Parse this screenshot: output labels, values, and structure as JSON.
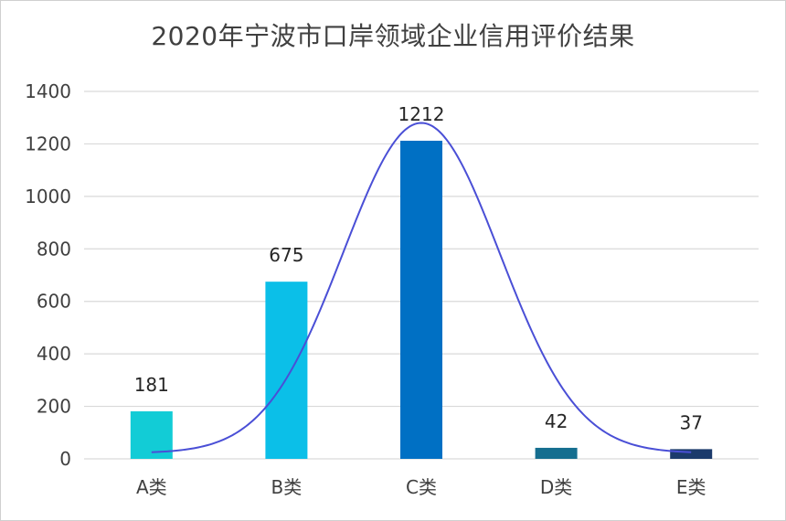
{
  "chart_data": {
    "type": "bar",
    "title": "2020年宁波市口岸领域企业信用评价结果",
    "categories": [
      "A类",
      "B类",
      "C类",
      "D类",
      "E类"
    ],
    "values": [
      181,
      675,
      1212,
      42,
      37
    ],
    "data_labels": [
      "181",
      "675",
      "1212",
      "42",
      "37"
    ],
    "colors": [
      "#12CCD6",
      "#0BBFE8",
      "#0070C4",
      "#156E8F",
      "#1B3A6B"
    ],
    "ylim": [
      0,
      1400
    ],
    "yticks": [
      0,
      200,
      400,
      600,
      800,
      1000,
      1200,
      1400
    ],
    "grid": true,
    "legend": "none",
    "overlay_curve": {
      "type": "normal-curve",
      "color": "#4A4FD6",
      "peak_value": 1280
    }
  }
}
